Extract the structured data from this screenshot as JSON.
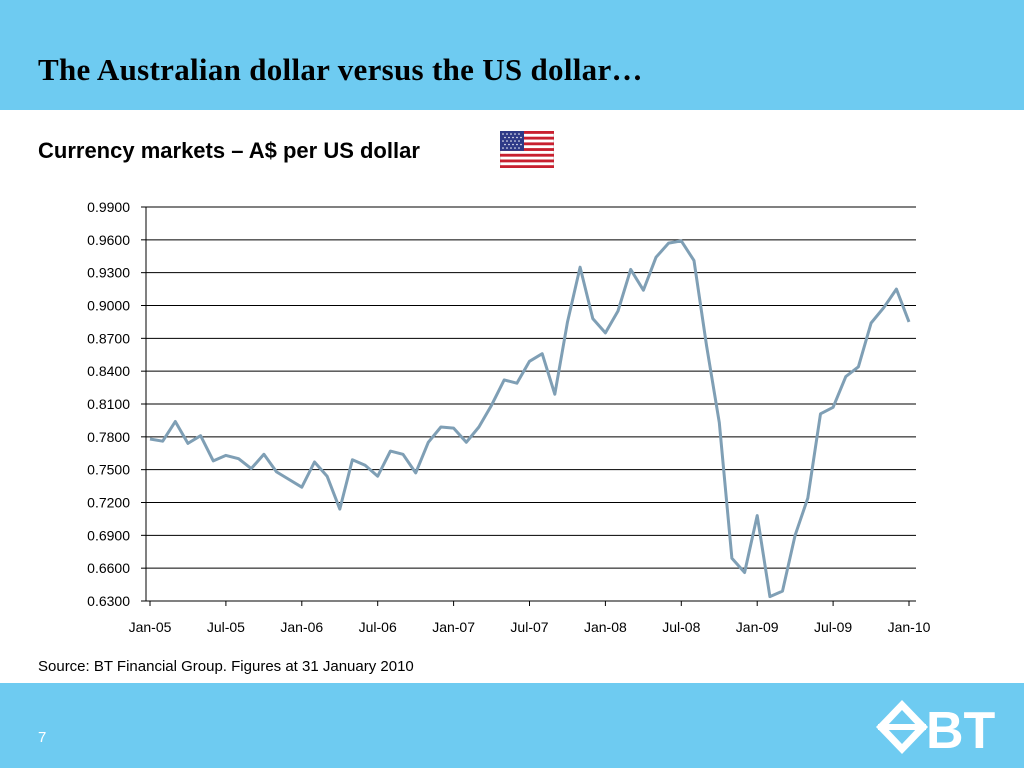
{
  "slide": {
    "title": "The Australian dollar versus the US dollar…",
    "subtitle": "Currency markets – A$ per US dollar",
    "source": "Source: BT Financial Group. Figures at 31 January 2010",
    "page_number": "7",
    "logo_text": "BT",
    "flag_icon": "us-flag-icon",
    "logo_icon": "bt-diamond-logo-icon",
    "band_color": "#6ecbf1"
  },
  "chart_data": {
    "type": "line",
    "title": "",
    "xlabel": "",
    "ylabel": "",
    "ylim": [
      0.63,
      0.99
    ],
    "yticks": [
      "0.9900",
      "0.9600",
      "0.9300",
      "0.9000",
      "0.8700",
      "0.8400",
      "0.8100",
      "0.7800",
      "0.7500",
      "0.7200",
      "0.6900",
      "0.6600",
      "0.6300"
    ],
    "xticks": [
      "Jan-05",
      "Jul-05",
      "Jan-06",
      "Jul-06",
      "Jan-07",
      "Jul-07",
      "Jan-08",
      "Jul-08",
      "Jan-09",
      "Jul-09",
      "Jan-10"
    ],
    "grid": "horizontal",
    "line_color": "#7f9fb5",
    "series": [
      {
        "x": [
          "Jan-05",
          "Feb-05",
          "Mar-05",
          "Apr-05",
          "May-05",
          "Jun-05",
          "Jul-05",
          "Aug-05",
          "Sep-05",
          "Oct-05",
          "Nov-05",
          "Dec-05",
          "Jan-06",
          "Feb-06",
          "Mar-06",
          "Apr-06",
          "May-06",
          "Jun-06",
          "Jul-06",
          "Aug-06",
          "Sep-06",
          "Oct-06",
          "Nov-06",
          "Dec-06",
          "Jan-07",
          "Feb-07",
          "Mar-07",
          "Apr-07",
          "May-07",
          "Jun-07",
          "Jul-07",
          "Aug-07",
          "Sep-07",
          "Oct-07",
          "Nov-07",
          "Dec-07",
          "Jan-08",
          "Feb-08",
          "Mar-08",
          "Apr-08",
          "May-08",
          "Jun-08",
          "Jul-08",
          "Aug-08",
          "Sep-08",
          "Oct-08",
          "Nov-08",
          "Dec-08",
          "Jan-09",
          "Feb-09",
          "Mar-09",
          "Apr-09",
          "May-09",
          "Jun-09",
          "Jul-09",
          "Aug-09",
          "Sep-09",
          "Oct-09",
          "Nov-09",
          "Dec-09",
          "Jan-10"
        ],
        "values": [
          0.778,
          0.776,
          0.794,
          0.774,
          0.781,
          0.758,
          0.763,
          0.76,
          0.751,
          0.764,
          0.748,
          0.741,
          0.734,
          0.757,
          0.744,
          0.714,
          0.759,
          0.754,
          0.744,
          0.767,
          0.764,
          0.747,
          0.775,
          0.789,
          0.788,
          0.775,
          0.789,
          0.809,
          0.832,
          0.829,
          0.849,
          0.856,
          0.819,
          0.885,
          0.935,
          0.888,
          0.875,
          0.895,
          0.933,
          0.914,
          0.944,
          0.957,
          0.959,
          0.941,
          0.863,
          0.793,
          0.669,
          0.656,
          0.708,
          0.634,
          0.639,
          0.69,
          0.724,
          0.801,
          0.807,
          0.835,
          0.844,
          0.884,
          0.898,
          0.915,
          0.885
        ]
      }
    ]
  }
}
